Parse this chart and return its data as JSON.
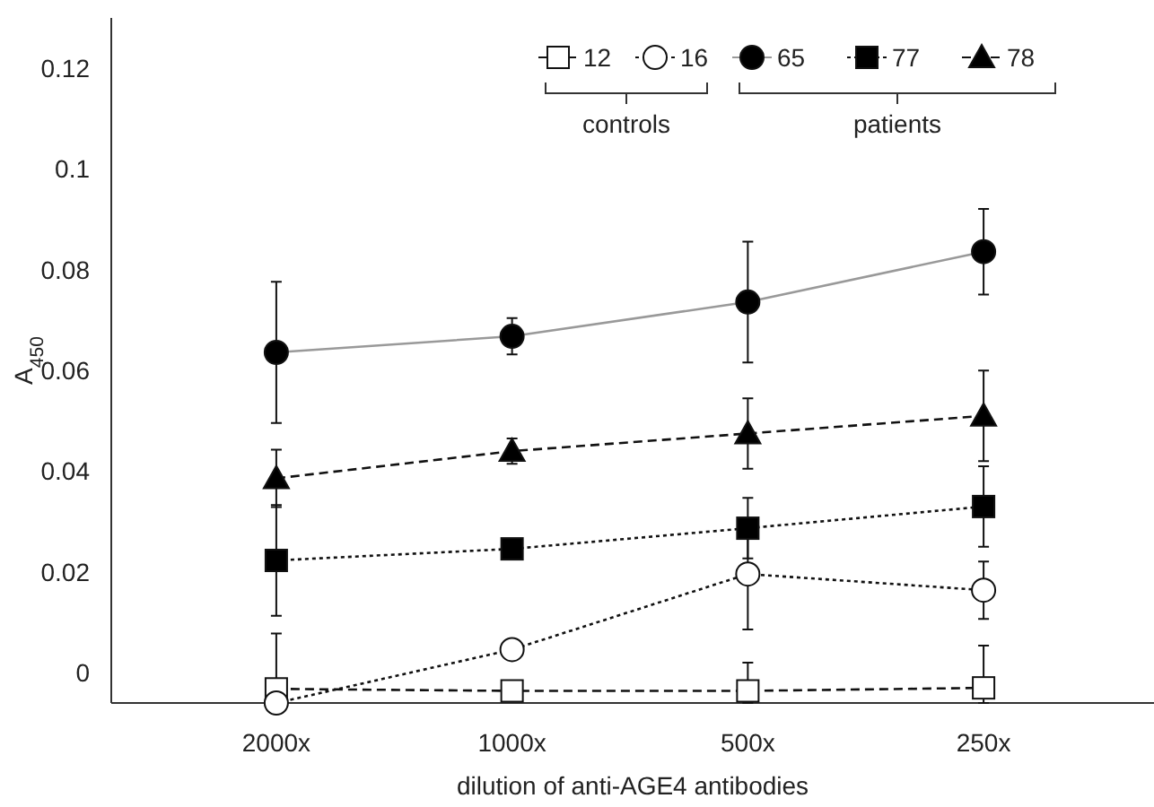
{
  "chart_data": {
    "type": "line",
    "xlabel": "dilution of anti-AGE4 antibodies",
    "ylabel": "A$_{450}$",
    "categories": [
      "2000x",
      "1000x",
      "500x",
      "250x"
    ],
    "ylim": [
      -0.006,
      0.13
    ],
    "yticks": [
      0,
      0.02,
      0.04,
      0.06,
      0.08,
      0.1,
      0.12
    ],
    "grid": false,
    "legend": "top right",
    "annotations": [
      "controls",
      "patients"
    ],
    "series": [
      {
        "name": "12",
        "color": "#ffffff",
        "marker": "square",
        "line_style": "dashed",
        "values": [
          -0.0032,
          -0.0036,
          -0.0036,
          -0.003
        ],
        "errors": [
          [
            -0.0032,
            0.0078
          ],
          null,
          [
            -0.006,
            0.002
          ],
          [
            -0.006,
            0.0054
          ]
        ]
      },
      {
        "name": "16",
        "color": "#ffffff",
        "marker": "circle",
        "line_style": "dotted",
        "values": [
          -0.006,
          0.0046,
          0.0196,
          0.0164
        ],
        "errors": [
          null,
          null,
          0.011,
          0.0057
        ]
      },
      {
        "name": "65",
        "color": "#000000",
        "marker": "circle",
        "line_style": "solid",
        "values": [
          0.0636,
          0.0668,
          0.0736,
          0.0836
        ],
        "errors": [
          0.014,
          0.0036,
          0.012,
          0.0085
        ]
      },
      {
        "name": "77",
        "color": "#000000",
        "marker": "square",
        "line_style": "dotted",
        "values": [
          0.0223,
          0.0246,
          0.0287,
          0.033
        ],
        "errors": [
          0.011,
          null,
          0.006,
          0.008
        ]
      },
      {
        "name": "78",
        "color": "#000000",
        "marker": "triangle",
        "line_style": "dashed",
        "values": [
          0.0386,
          0.044,
          0.0475,
          0.051
        ],
        "errors": [
          0.0057,
          0.0025,
          0.007,
          0.009
        ]
      }
    ]
  }
}
